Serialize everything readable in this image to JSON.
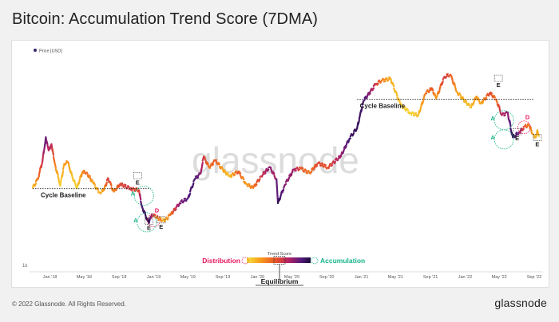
{
  "title": "Bitcoin: Accumulation Trend Score (7DMA)",
  "footer": {
    "copyright": "© 2022 Glassnode. All Rights Reserved.",
    "brand": "glassnode"
  },
  "watermark": "glassnode",
  "colors": {
    "distribution": "#e8175d",
    "accumulation": "#16b389",
    "score_gradient": [
      "#f5e33d",
      "#f8a11d",
      "#ea5427",
      "#b42264",
      "#541a7c",
      "#1a0b36"
    ],
    "baseline": "#222222"
  },
  "chart_data": {
    "type": "line",
    "legend": {
      "label": "Price [USD]",
      "position": "top-left"
    },
    "y_scale": "log",
    "y_axis_label": "1k",
    "x_ticks": [
      "Jan '18",
      "May '18",
      "Sep '18",
      "Jan '19",
      "May '19",
      "Sep '19",
      "Jan '20",
      "May '20",
      "Sep '20",
      "Jan '21",
      "May '21",
      "Sep '21",
      "Jan '22",
      "May '22",
      "Sep '22"
    ],
    "series": [
      {
        "points": [
          [
            "2017-11-01",
            6700,
            0.9
          ],
          [
            "2017-11-20",
            8100,
            0.7
          ],
          [
            "2017-12-05",
            11500,
            0.5
          ],
          [
            "2017-12-17",
            19000,
            0.2
          ],
          [
            "2017-12-27",
            14500,
            0.45
          ],
          [
            "2018-01-06",
            16500,
            0.4
          ],
          [
            "2018-01-17",
            11300,
            0.7
          ],
          [
            "2018-02-06",
            7000,
            0.95
          ],
          [
            "2018-02-20",
            11000,
            0.8
          ],
          [
            "2018-03-05",
            11400,
            0.75
          ],
          [
            "2018-03-20",
            8500,
            0.9
          ],
          [
            "2018-04-06",
            6700,
            0.95
          ],
          [
            "2018-04-25",
            9300,
            0.75
          ],
          [
            "2018-05-10",
            9200,
            0.65
          ],
          [
            "2018-06-01",
            7500,
            0.8
          ],
          [
            "2018-06-24",
            6100,
            0.85
          ],
          [
            "2018-07-10",
            6400,
            0.8
          ],
          [
            "2018-07-24",
            8200,
            0.5
          ],
          [
            "2018-08-14",
            6200,
            0.75
          ],
          [
            "2018-09-05",
            7300,
            0.55
          ],
          [
            "2018-10-10",
            6600,
            0.5
          ],
          [
            "2018-11-10",
            6400,
            0.6
          ],
          [
            "2018-11-20",
            4600,
            0.15
          ],
          [
            "2018-12-15",
            3250,
            0.05
          ],
          [
            "2018-12-25",
            3900,
            0.4
          ],
          [
            "2019-01-10",
            3650,
            0.7
          ],
          [
            "2019-02-07",
            3400,
            0.85
          ],
          [
            "2019-03-01",
            3850,
            0.7
          ],
          [
            "2019-04-02",
            4900,
            0.3
          ],
          [
            "2019-05-01",
            5400,
            0.2
          ],
          [
            "2019-05-25",
            8000,
            0.15
          ],
          [
            "2019-06-15",
            9000,
            0.3
          ],
          [
            "2019-06-26",
            12800,
            0.5
          ],
          [
            "2019-07-15",
            10200,
            0.7
          ],
          [
            "2019-08-06",
            11800,
            0.6
          ],
          [
            "2019-09-01",
            9800,
            0.8
          ],
          [
            "2019-09-24",
            8500,
            0.9
          ],
          [
            "2019-10-26",
            9400,
            0.6
          ],
          [
            "2019-11-22",
            7300,
            0.8
          ],
          [
            "2019-12-17",
            6700,
            0.7
          ],
          [
            "2020-01-14",
            8500,
            0.5
          ],
          [
            "2020-02-13",
            10300,
            0.3
          ],
          [
            "2020-03-08",
            8000,
            0.4
          ],
          [
            "2020-03-13",
            4900,
            0.05
          ],
          [
            "2020-04-06",
            7100,
            0.3
          ],
          [
            "2020-05-08",
            9800,
            0.35
          ],
          [
            "2020-06-02",
            10000,
            0.6
          ],
          [
            "2020-07-03",
            9100,
            0.7
          ],
          [
            "2020-08-02",
            11200,
            0.55
          ],
          [
            "2020-09-05",
            10200,
            0.6
          ],
          [
            "2020-10-21",
            12900,
            0.35
          ],
          [
            "2020-11-20",
            18500,
            0.15
          ],
          [
            "2020-12-17",
            23000,
            0.1
          ],
          [
            "2021-01-08",
            40000,
            0.15
          ],
          [
            "2021-02-21",
            57000,
            0.5
          ],
          [
            "2021-03-13",
            61000,
            0.7
          ],
          [
            "2021-04-14",
            63500,
            0.85
          ],
          [
            "2021-05-19",
            37000,
            0.9
          ],
          [
            "2021-06-22",
            31500,
            0.95
          ],
          [
            "2021-07-20",
            29800,
            0.9
          ],
          [
            "2021-08-15",
            47000,
            0.7
          ],
          [
            "2021-09-07",
            52000,
            0.6
          ],
          [
            "2021-09-21",
            42000,
            0.8
          ],
          [
            "2021-10-20",
            66000,
            0.5
          ],
          [
            "2021-11-10",
            69000,
            0.6
          ],
          [
            "2021-12-04",
            48000,
            0.8
          ],
          [
            "2022-01-22",
            35000,
            0.9
          ],
          [
            "2022-02-10",
            44000,
            0.75
          ],
          [
            "2022-02-25",
            38000,
            0.85
          ],
          [
            "2022-03-29",
            47500,
            0.55
          ],
          [
            "2022-04-20",
            41500,
            0.7
          ],
          [
            "2022-05-10",
            30000,
            0.4
          ],
          [
            "2022-05-31",
            31500,
            0.35
          ],
          [
            "2022-06-18",
            19000,
            0.05
          ],
          [
            "2022-07-10",
            21000,
            0.3
          ],
          [
            "2022-07-30",
            23800,
            0.6
          ],
          [
            "2022-08-14",
            24300,
            0.7
          ],
          [
            "2022-08-28",
            20200,
            0.8
          ],
          [
            "2022-09-07",
            19000,
            0.9
          ],
          [
            "2022-09-12",
            22000,
            0.8
          ],
          [
            "2022-09-18",
            19500,
            0.9
          ]
        ]
      }
    ],
    "annotations": {
      "baselines": [
        {
          "label": "Cycle Baseline",
          "y": 6600,
          "from": "2017-11-01",
          "to": "2018-12-15"
        },
        {
          "label": "Cycle Baseline",
          "y": 41500,
          "from": "2020-12-17",
          "to": "2022-09-01"
        }
      ],
      "markers": [
        {
          "text": "E",
          "kind": "exit",
          "date": "2018-11-05",
          "y": 7200
        },
        {
          "text": "A",
          "kind": "accumulation",
          "date": "2018-11-05",
          "y": 5700
        },
        {
          "text": "A",
          "kind": "accumulation",
          "date": "2018-11-15",
          "y": 3300
        },
        {
          "text": "E",
          "kind": "exit",
          "date": "2018-12-15",
          "y": 2820
        },
        {
          "text": "D",
          "kind": "distribution",
          "date": "2019-01-12",
          "y": 4050
        },
        {
          "text": "E",
          "kind": "exit",
          "date": "2019-01-27",
          "y": 2900
        },
        {
          "text": "E",
          "kind": "exit",
          "date": "2022-04-28",
          "y": 53500
        },
        {
          "text": "A",
          "kind": "accumulation",
          "date": "2022-04-25",
          "y": 27000
        },
        {
          "text": "A",
          "kind": "accumulation",
          "date": "2022-04-25",
          "y": 18200
        },
        {
          "text": "E",
          "kind": "exit",
          "date": "2022-07-03",
          "y": 17800
        },
        {
          "text": "D",
          "kind": "distribution",
          "date": "2022-08-08",
          "y": 27500
        },
        {
          "text": "E",
          "kind": "exit",
          "date": "2022-09-12",
          "y": 15800
        }
      ]
    },
    "colorbar": {
      "title": "Trend Score",
      "left_label": "Distribution",
      "right_label": "Accumulation",
      "center_label": "Equilibrium"
    }
  }
}
